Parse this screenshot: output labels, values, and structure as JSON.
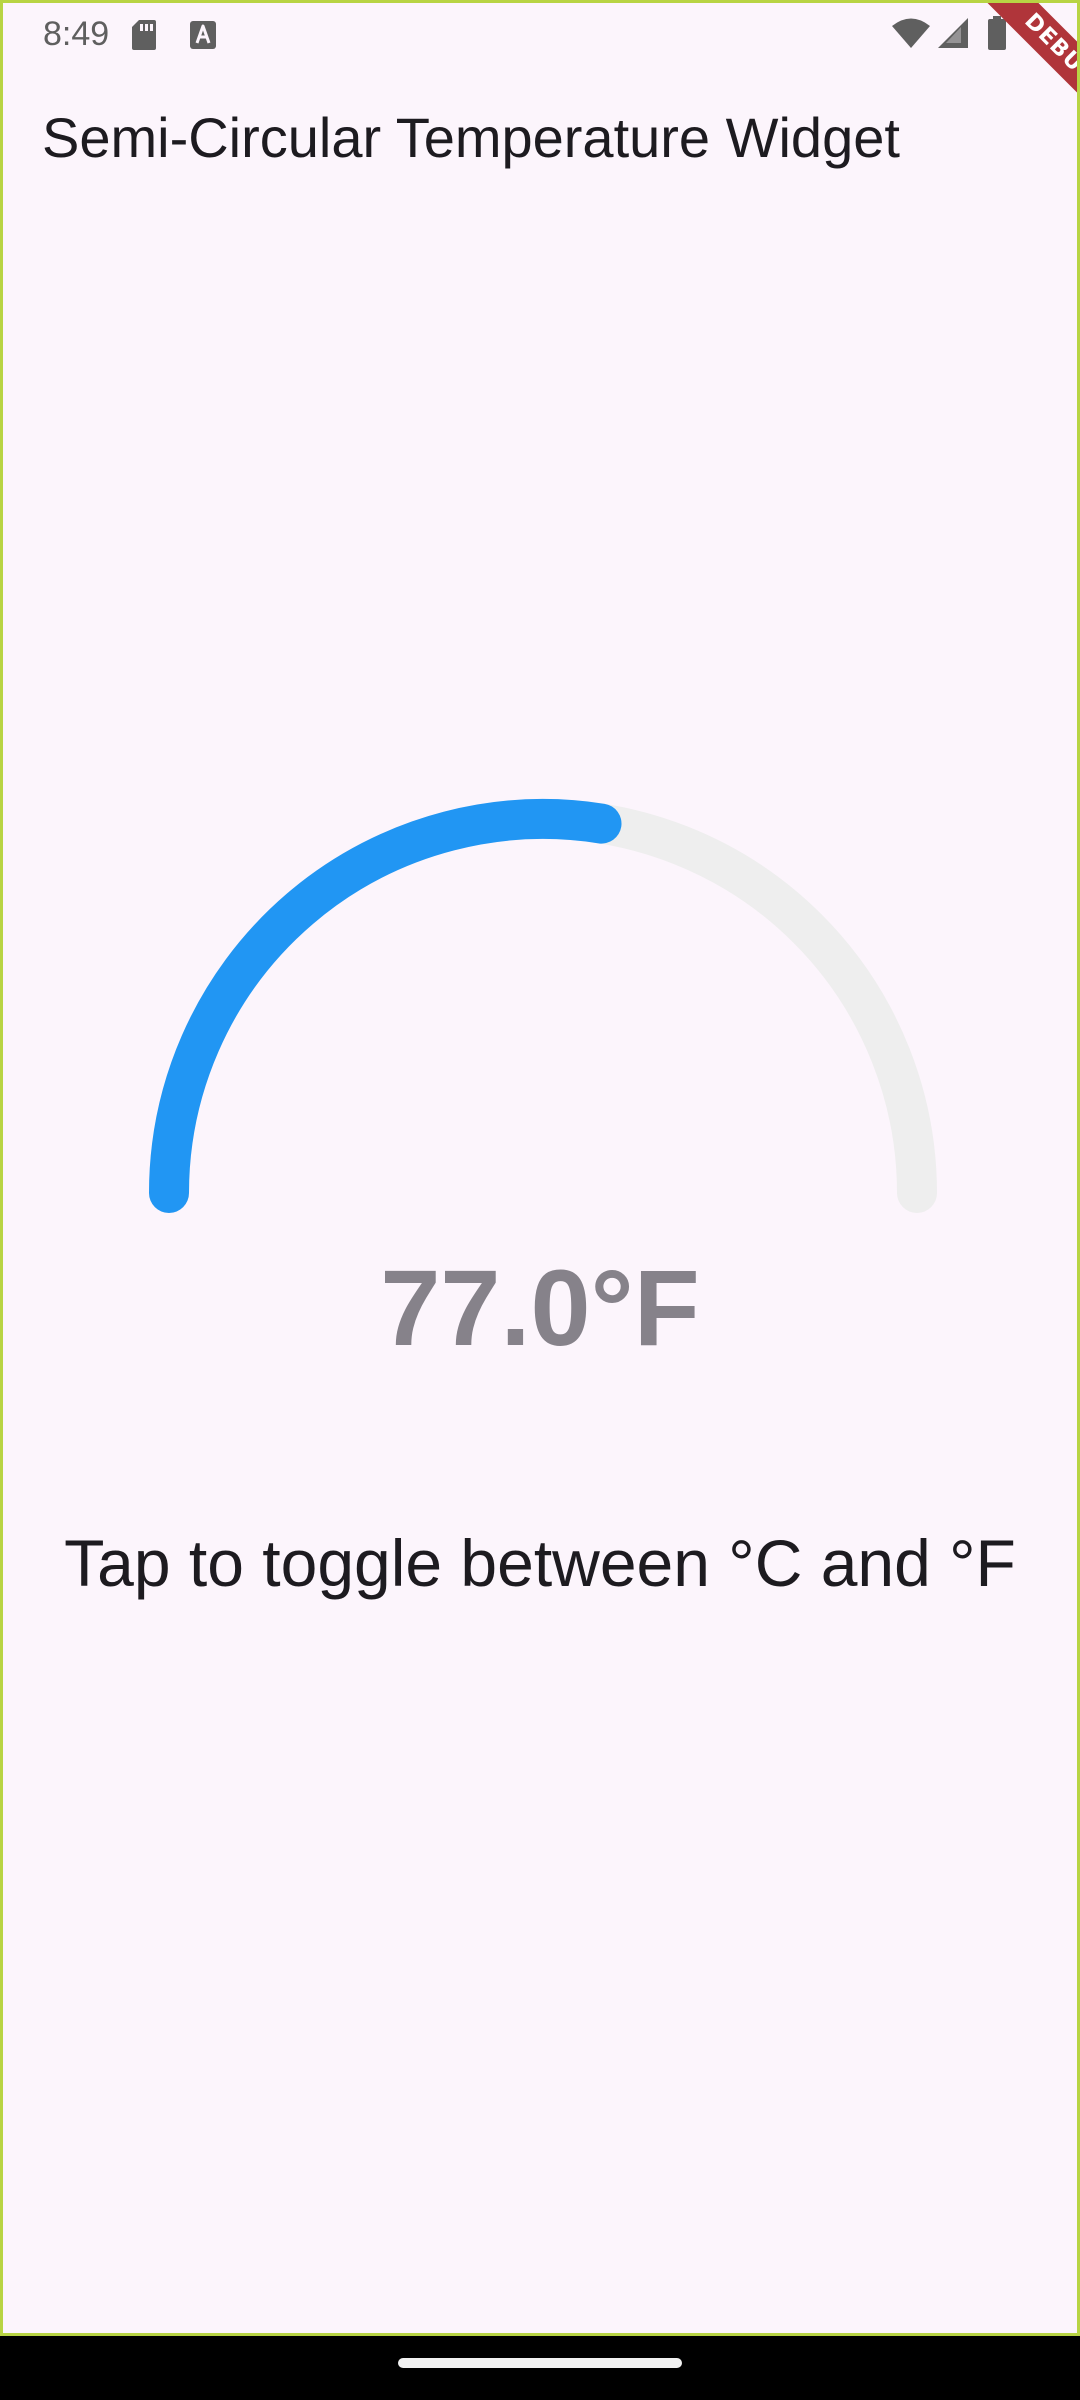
{
  "status_bar": {
    "time": "8:49",
    "icons": [
      "sd-card-icon",
      "keyboard-a-icon",
      "wifi-icon",
      "signal-icon",
      "battery-icon"
    ]
  },
  "app_bar": {
    "title": "Semi-Circular Temperature Widget",
    "debug_label": "DEBUG"
  },
  "gauge": {
    "level_fraction": 0.55,
    "active_color": "#2196f3",
    "track_color": "#eeeeee"
  },
  "temperature": {
    "display": "77.0°F"
  },
  "hint": {
    "text": "Tap to toggle between °C and °F"
  },
  "colors": {
    "background": "#fcf5fc",
    "frame": "#b8d444",
    "value_text": "#86828a"
  }
}
